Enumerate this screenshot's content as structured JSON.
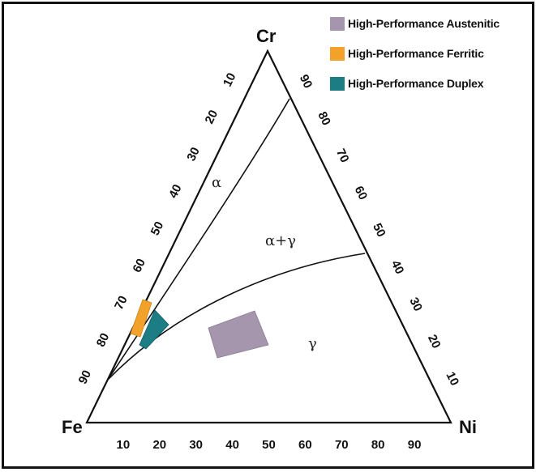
{
  "diagram": {
    "type": "ternary-phase-diagram",
    "corners": {
      "top": "Cr",
      "left": "Fe",
      "right": "Ni"
    },
    "axes": {
      "bottom_ticks": [
        "10",
        "20",
        "30",
        "40",
        "50",
        "60",
        "70",
        "80",
        "90"
      ],
      "left_ticks": [
        "10",
        "20",
        "30",
        "40",
        "50",
        "60",
        "70",
        "80",
        "90"
      ],
      "right_ticks": [
        "90",
        "80",
        "70",
        "60",
        "50",
        "40",
        "30",
        "20",
        "10"
      ]
    },
    "phase_labels": {
      "alpha": "α",
      "alpha_gamma": "α+γ",
      "gamma": "γ"
    },
    "legend": [
      {
        "label": "High-Performance Austenitic",
        "color": "#a596ad"
      },
      {
        "label": "High-Performance Ferritic",
        "color": "#f2a12b"
      },
      {
        "label": "High-Performance Duplex",
        "color": "#1c7d84"
      }
    ]
  }
}
